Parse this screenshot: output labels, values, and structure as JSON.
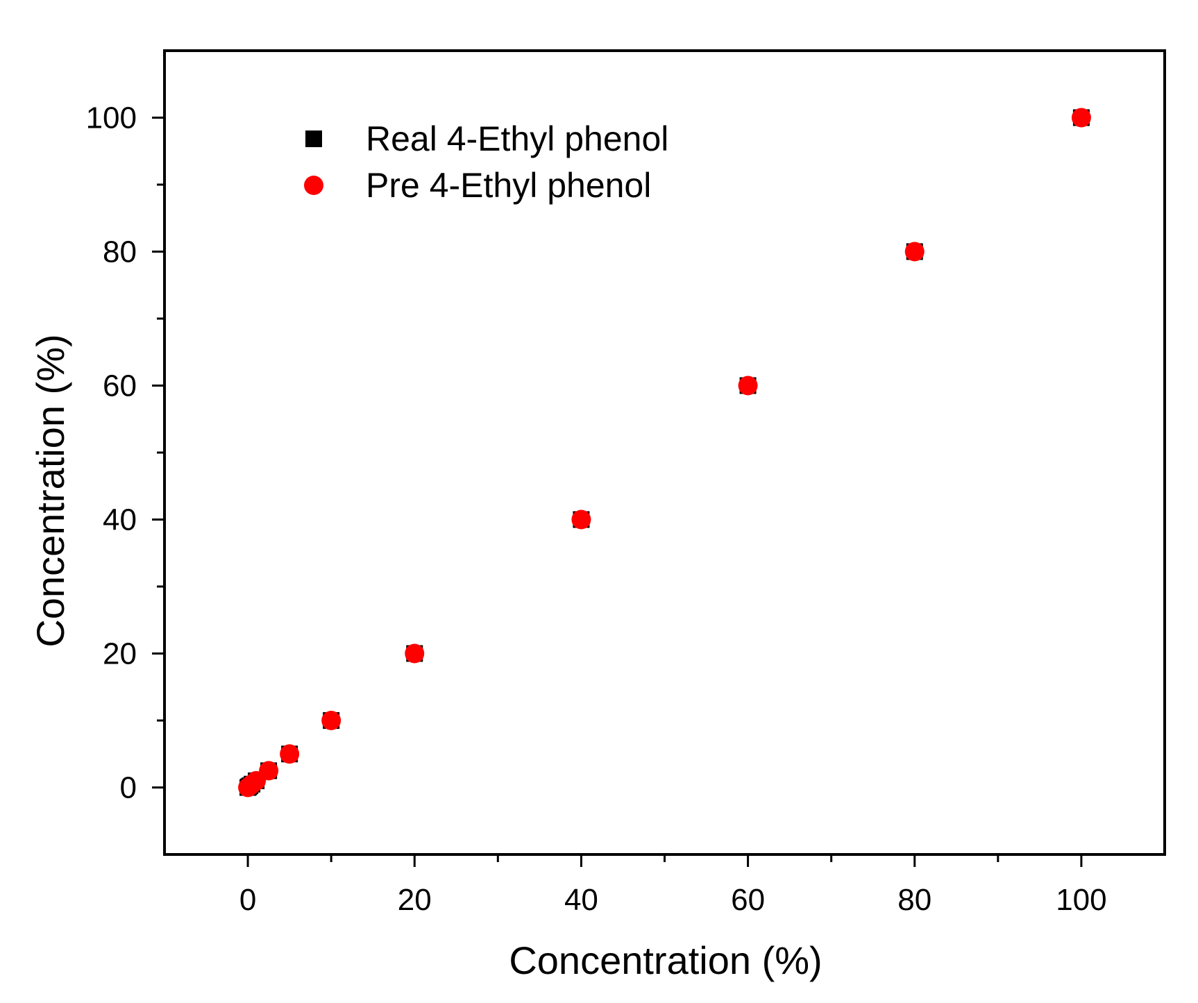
{
  "chart_data": {
    "type": "scatter",
    "xlabel": "Concentration (%)",
    "ylabel": "Concentration (%)",
    "xlim": [
      -10,
      110
    ],
    "ylim": [
      -10,
      110
    ],
    "x_ticks": [
      "0",
      "20",
      "40",
      "60",
      "80",
      "100"
    ],
    "y_ticks": [
      "0",
      "20",
      "40",
      "60",
      "80",
      "100"
    ],
    "grid": false,
    "legend_position": "top-left",
    "series": [
      {
        "name": "Real 4-Ethyl phenol",
        "marker": "square",
        "color": "#000000",
        "x": [
          0,
          0.1,
          0.25,
          0.5,
          1,
          2.5,
          5,
          10,
          20,
          40,
          60,
          80,
          100
        ],
        "y": [
          0,
          0.1,
          0.25,
          0.5,
          1,
          2.5,
          5,
          10,
          20,
          40,
          60,
          80,
          100
        ]
      },
      {
        "name": "Pre 4-Ethyl phenol",
        "marker": "circle",
        "color": "#ff0000",
        "x": [
          0,
          0.1,
          0.25,
          0.5,
          1,
          2.5,
          5,
          10,
          20,
          40,
          60,
          80,
          100
        ],
        "y": [
          0,
          0.1,
          0.25,
          0.5,
          1,
          2.5,
          5,
          10,
          20,
          40,
          60,
          80,
          100
        ]
      }
    ]
  }
}
